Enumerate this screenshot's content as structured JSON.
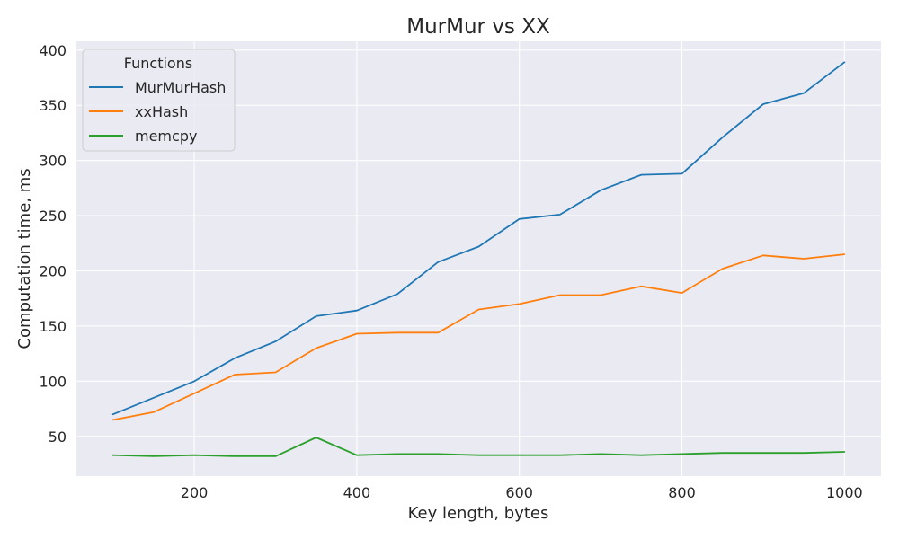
{
  "chart_data": {
    "type": "line",
    "title": "MurMur vs XX",
    "xlabel": "Key length, bytes",
    "ylabel": "Computation time, ms",
    "xlim": [
      55,
      1045
    ],
    "ylim": [
      14,
      408
    ],
    "xticks": [
      200,
      400,
      600,
      800,
      1000
    ],
    "yticks": [
      50,
      100,
      150,
      200,
      250,
      300,
      350,
      400
    ],
    "grid": true,
    "legend": {
      "title": "Functions",
      "placement": "top-left"
    },
    "x": [
      100,
      150,
      200,
      250,
      300,
      350,
      400,
      450,
      500,
      550,
      600,
      650,
      700,
      750,
      800,
      850,
      900,
      950,
      1000
    ],
    "series": [
      {
        "name": "MurMurHash",
        "color": "#1f77b4",
        "values": [
          70,
          85,
          100,
          121,
          136,
          159,
          164,
          179,
          208,
          222,
          247,
          251,
          273,
          287,
          288,
          321,
          351,
          361,
          389
        ]
      },
      {
        "name": "xxHash",
        "color": "#ff7f0e",
        "values": [
          65,
          72,
          89,
          106,
          108,
          130,
          143,
          144,
          144,
          165,
          170,
          178,
          178,
          186,
          180,
          202,
          214,
          211,
          215
        ]
      },
      {
        "name": "memcpy",
        "color": "#2ca02c",
        "values": [
          33,
          32,
          33,
          32,
          32,
          49,
          33,
          34,
          34,
          33,
          33,
          33,
          34,
          33,
          34,
          35,
          35,
          35,
          36
        ]
      }
    ]
  }
}
